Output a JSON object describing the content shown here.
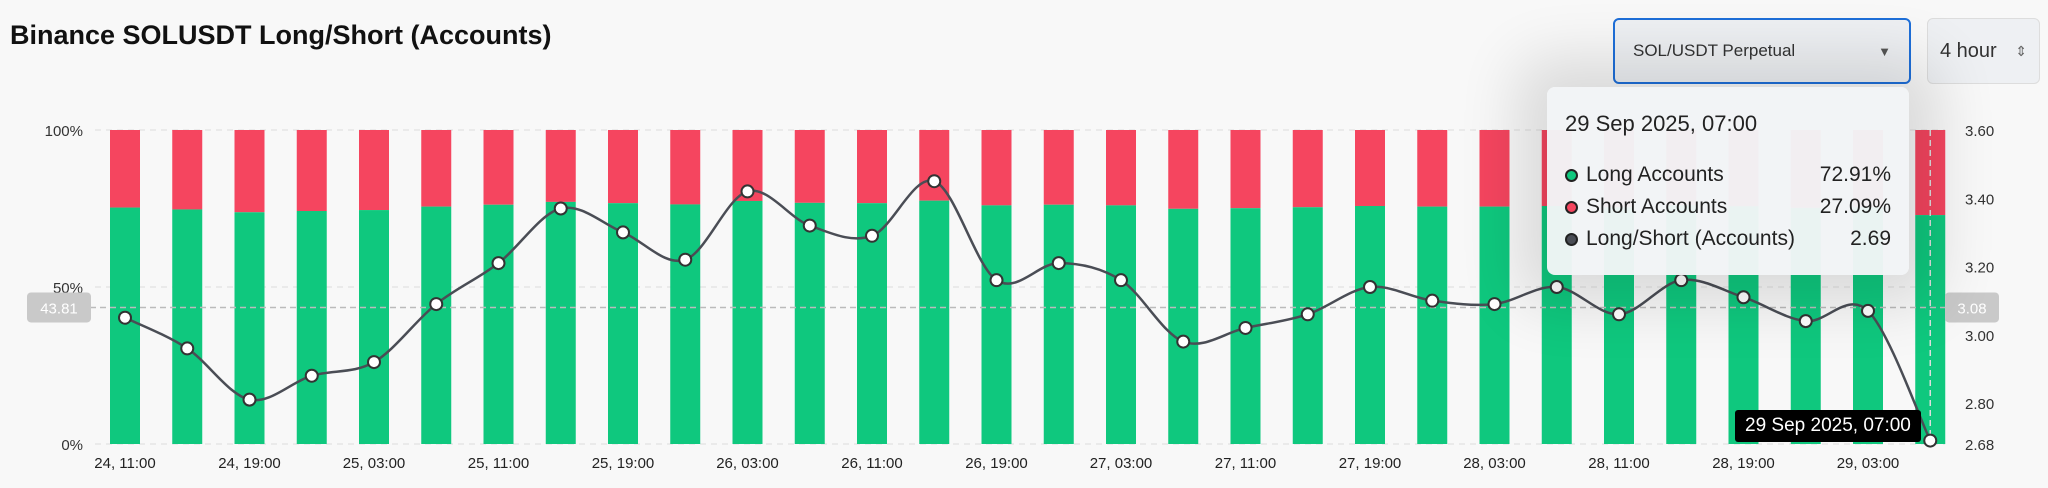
{
  "header": {
    "title": "Binance SOLUSDT Long/Short (Accounts)",
    "symbol_select": "SOL/USDT Perpetual",
    "interval_select": "4 hour"
  },
  "colors": {
    "long": "#0fc87e",
    "short": "#f5455f",
    "ratio_line": "#4a4d55",
    "accent": "#1e6fd9"
  },
  "crosshair": {
    "left_label": "43.81",
    "right_label": "3.08",
    "x_label": "29 Sep 2025, 07:00"
  },
  "tooltip": {
    "date": "29 Sep 2025, 07:00",
    "rows": [
      {
        "label": "Long Accounts",
        "value": "72.91%",
        "color": "#0fc87e"
      },
      {
        "label": "Short Accounts",
        "value": "27.09%",
        "color": "#f5455f"
      },
      {
        "label": "Long/Short (Accounts)",
        "value": "2.69",
        "color": "#4a4d55"
      }
    ]
  },
  "chart_data": {
    "type": "bar",
    "stacked": true,
    "x_tick_labels": [
      "24, 11:00",
      "24, 19:00",
      "25, 03:00",
      "25, 11:00",
      "25, 19:00",
      "26, 03:00",
      "26, 11:00",
      "26, 19:00",
      "27, 03:00",
      "27, 11:00",
      "27, 19:00",
      "28, 03:00",
      "28, 11:00",
      "28, 19:00",
      "29, 03:00"
    ],
    "y_left": {
      "ticks": [
        "0%",
        "50%",
        "100%"
      ],
      "range": [
        0,
        100
      ]
    },
    "y_right": {
      "ticks": [
        "2.68",
        "2.80",
        "3.00",
        "3.20",
        "3.40",
        "3.60"
      ],
      "range": [
        2.68,
        3.6
      ]
    },
    "grid": "horizontal dashed",
    "series": [
      {
        "name": "Long Accounts",
        "type": "bar",
        "unit": "%",
        "values": [
          75.3,
          74.7,
          73.8,
          74.2,
          74.5,
          75.6,
          76.2,
          77.1,
          76.7,
          76.3,
          77.4,
          76.8,
          76.7,
          77.5,
          76.0,
          76.2,
          76.0,
          74.9,
          75.1,
          75.4,
          75.8,
          75.6,
          75.6,
          75.8,
          75.4,
          76.0,
          75.7,
          75.2,
          75.4,
          72.91
        ]
      },
      {
        "name": "Short Accounts",
        "type": "bar",
        "unit": "%",
        "values": [
          24.7,
          25.3,
          26.2,
          25.8,
          25.5,
          24.4,
          23.8,
          22.9,
          23.3,
          23.7,
          22.6,
          23.2,
          23.3,
          22.5,
          24.0,
          23.8,
          24.0,
          25.1,
          24.9,
          24.6,
          24.2,
          24.4,
          24.4,
          24.2,
          24.6,
          24.0,
          24.3,
          24.8,
          24.6,
          27.09
        ]
      },
      {
        "name": "Long/Short (Accounts)",
        "type": "line",
        "values": [
          3.05,
          2.96,
          2.81,
          2.88,
          2.92,
          3.09,
          3.21,
          3.37,
          3.3,
          3.22,
          3.42,
          3.32,
          3.29,
          3.45,
          3.16,
          3.21,
          3.16,
          2.98,
          3.02,
          3.06,
          3.14,
          3.1,
          3.09,
          3.14,
          3.06,
          3.16,
          3.11,
          3.04,
          3.07,
          2.69
        ]
      }
    ]
  }
}
